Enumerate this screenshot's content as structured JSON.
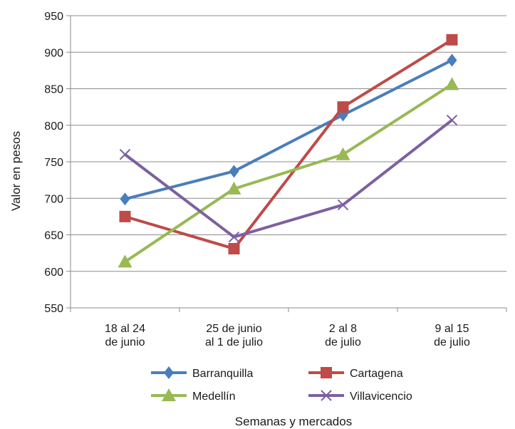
{
  "chart_data": {
    "type": "line",
    "xlabel": "Semanas y mercados",
    "ylabel": "Valor en pesos",
    "ylim": [
      550,
      950
    ],
    "yticks": [
      550,
      600,
      650,
      700,
      750,
      800,
      850,
      900,
      950
    ],
    "grid": true,
    "legend_position": "bottom",
    "categories": [
      [
        "18 al 24",
        "de junio"
      ],
      [
        "25 de junio",
        "al 1 de julio"
      ],
      [
        "2 al 8",
        "de julio"
      ],
      [
        "9 al 15",
        "de julio"
      ]
    ],
    "series": [
      {
        "name": "Barranquilla",
        "color": "#4a7ebb",
        "marker": "diamond",
        "values": [
          699,
          737,
          814,
          889
        ]
      },
      {
        "name": "Cartagena",
        "color": "#be4b48",
        "marker": "square",
        "values": [
          675,
          631,
          825,
          917
        ]
      },
      {
        "name": "Medellín",
        "color": "#98b954",
        "marker": "triangle",
        "values": [
          613,
          713,
          760,
          856
        ]
      },
      {
        "name": "Villavicencio",
        "color": "#7d60a0",
        "marker": "x",
        "values": [
          760,
          647,
          691,
          807
        ]
      }
    ]
  }
}
